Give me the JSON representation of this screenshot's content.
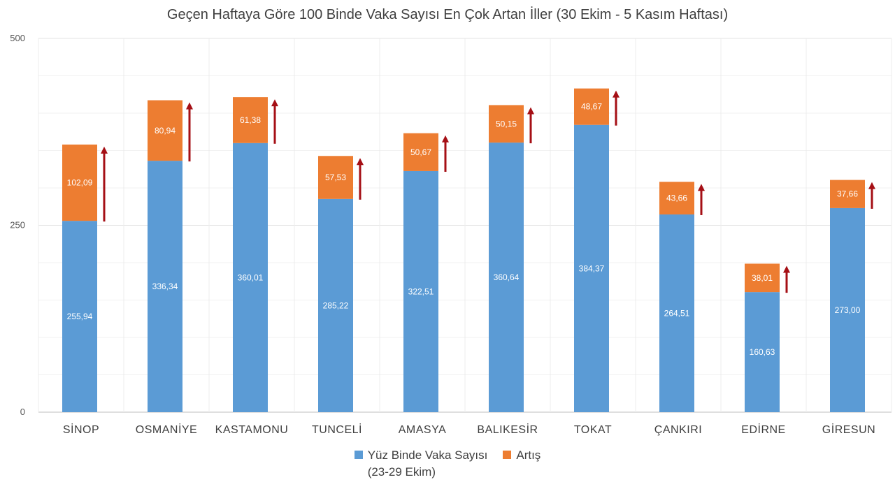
{
  "colors": {
    "base": "#5b9bd5",
    "increase": "#ed7d31",
    "arrow": "#a50f15",
    "grid": "#e3e3e3",
    "axis": "#bfbfbf"
  },
  "chart_data": {
    "type": "bar",
    "stacked": true,
    "title": "Geçen Haftaya Göre 100 Binde Vaka Sayısı En Çok Artan İller (30 Ekim - 5 Kasım Haftası)",
    "categories": [
      "SİNOP",
      "OSMANİYE",
      "KASTAMONU",
      "TUNCELİ",
      "AMASYA",
      "BALIKESİR",
      "TOKAT",
      "ÇANKIRI",
      "EDİRNE",
      "GİRESUN"
    ],
    "series": [
      {
        "name": "Yüz Binde Vaka Sayısı (23-29 Ekim)",
        "values": [
          255.94,
          336.34,
          360.01,
          285.22,
          322.51,
          360.64,
          384.37,
          264.51,
          160.63,
          273.0
        ],
        "labels": [
          "255,94",
          "336,34",
          "360,01",
          "285,22",
          "322,51",
          "360,64",
          "384,37",
          "264,51",
          "160,63",
          "273,00"
        ],
        "color": "#5b9bd5"
      },
      {
        "name": "Artış",
        "values": [
          102.09,
          80.94,
          61.38,
          57.53,
          50.67,
          50.15,
          48.67,
          43.66,
          38.01,
          37.66
        ],
        "labels": [
          "102,09",
          "80,94",
          "61,38",
          "57,53",
          "50,67",
          "50,15",
          "48,67",
          "43,66",
          "38,01",
          "37,66"
        ],
        "color": "#ed7d31"
      }
    ],
    "yticks": [
      {
        "value": 0,
        "label": "0"
      },
      {
        "value": 250,
        "label": "250"
      },
      {
        "value": 500,
        "label": "500"
      }
    ],
    "ylim": [
      0,
      500
    ],
    "grid": true,
    "arrows": true,
    "legend_position": "bottom",
    "legend": {
      "series1_line1": "Yüz Binde Vaka Sayısı",
      "series1_line2": "(23-29 Ekim)",
      "series2": "Artış"
    }
  }
}
